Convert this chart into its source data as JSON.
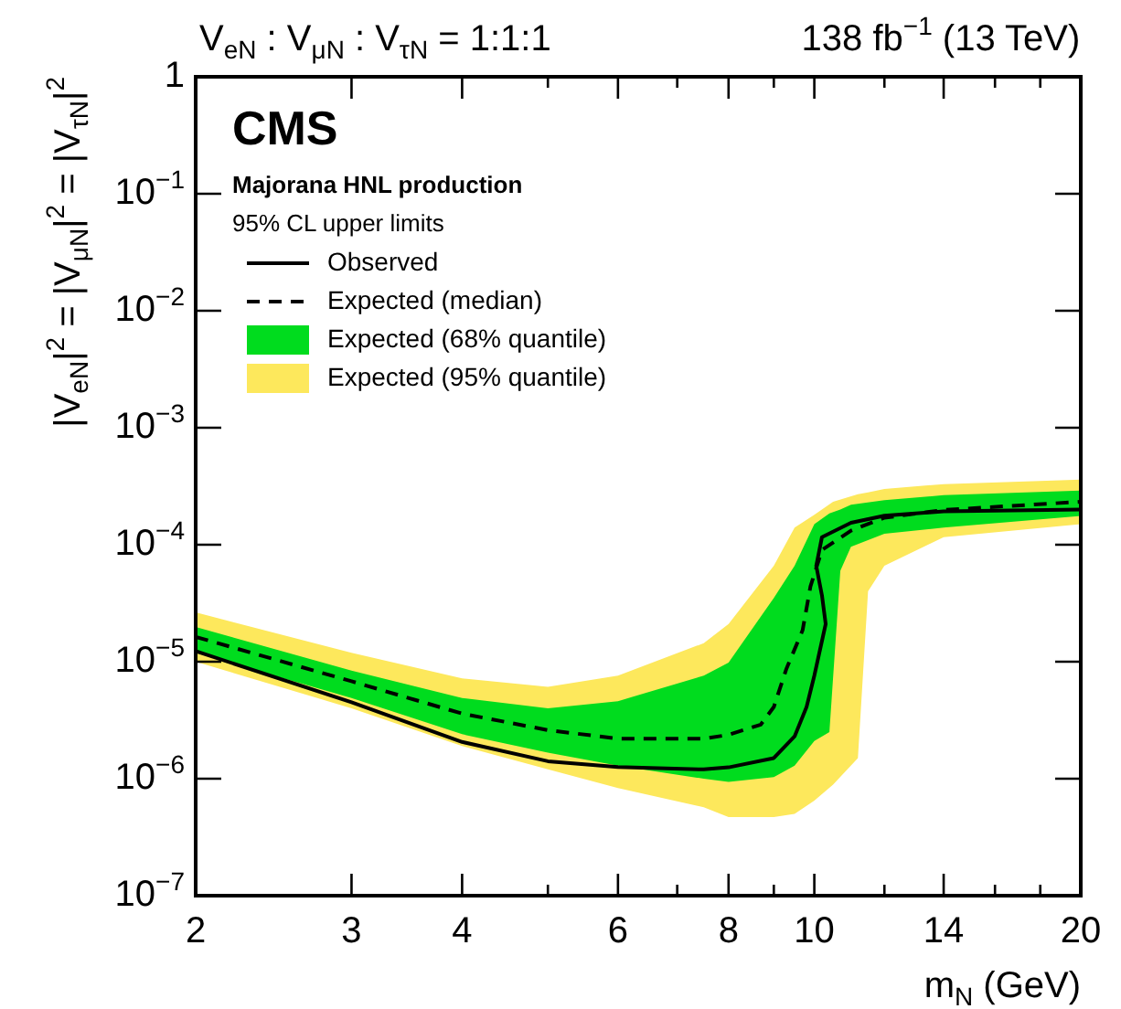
{
  "chart_data": {
    "type": "line",
    "title": "CMS",
    "subtitle": "Majorana HNL production",
    "legend_title": "95% CL upper limits",
    "annotations": [
      "V$_{eN}$ : V$_{μN}$ : V$_{τN}$ = 1:1:1",
      "138 fb$^{−1}$ (13 TeV)"
    ],
    "xlabel": "m$_{N}$ (GeV)",
    "ylabel": "|V$_{eN}$|$^{2}$ = |V$_{μN}$|$^{2}$ = |V$_{τN}$|$^{2}$",
    "log": "xy",
    "legend": "top left",
    "xlim": [
      2,
      20
    ],
    "ylim": [
      1e-07,
      1
    ],
    "xticks": [
      2,
      3,
      4,
      {
        "value": 5,
        "label": null
      },
      6,
      {
        "value": 7,
        "label": null
      },
      8,
      {
        "value": 9,
        "label": null
      },
      10,
      {
        "value": 12,
        "label": null
      },
      14,
      {
        "value": 16,
        "label": null
      },
      {
        "value": 18,
        "label": null
      },
      20
    ],
    "yticks": [
      {
        "value": 1e-07,
        "label": "10$^{−7}$"
      },
      {
        "value": 1e-06,
        "label": "10$^{−6}$"
      },
      {
        "value": 1e-05,
        "label": "10$^{−5}$"
      },
      {
        "value": 0.0001,
        "label": "10$^{−4}$"
      },
      {
        "value": 0.001,
        "label": "10$^{−3}$"
      },
      {
        "value": 0.01,
        "label": "10$^{−2}$"
      },
      {
        "value": 0.1,
        "label": "10$^{−1}$"
      },
      1
    ],
    "series": [
      {
        "name": "Observed",
        "type": "line",
        "color": "#000000",
        "line_style": "solid",
        "x": [
          2,
          3,
          4,
          5,
          6,
          7.5,
          8,
          9,
          9.5,
          9.8,
          10,
          10.3,
          10.2,
          10.05,
          10.2,
          11,
          12,
          14,
          20
        ],
        "values": [
          1.23e-05,
          4.5e-06,
          2.06e-06,
          1.41e-06,
          1.26e-06,
          1.2e-06,
          1.25e-06,
          1.5e-06,
          2.3e-06,
          4.1e-06,
          7.6e-06,
          2.1e-05,
          3.7e-05,
          6.6e-05,
          0.000116,
          0.000154,
          0.000177,
          0.000193,
          0.0002
        ]
      },
      {
        "name": "Expected (median)",
        "type": "line",
        "color": "#000000",
        "line_style": "dashed",
        "x": [
          2,
          3,
          4,
          5,
          6,
          7.5,
          8,
          8.7,
          9,
          9.3,
          9.7,
          9.9,
          10.2,
          11,
          12,
          14,
          20
        ],
        "values": [
          1.63e-05,
          6.8e-06,
          3.6e-06,
          2.6e-06,
          2.2e-06,
          2.2e-06,
          2.37e-06,
          2.9e-06,
          4.1e-06,
          8.7e-06,
          1.86e-05,
          4.4e-05,
          9e-05,
          0.000132,
          0.00017,
          0.000198,
          0.000233
        ]
      },
      {
        "name": "Expected (68% quantile)",
        "type": "area",
        "color": "#00dc1e",
        "x": [
          2,
          3,
          4,
          5,
          6,
          7.5,
          8,
          9,
          9.5,
          10,
          10.4,
          10.7,
          11,
          12,
          14,
          20
        ],
        "values": [
          null,
          null,
          null,
          null,
          null,
          null,
          null,
          null,
          null,
          null,
          null,
          null,
          null,
          null,
          null,
          null
        ],
        "lower": [
          1.19e-05,
          4.9e-06,
          2.4e-06,
          1.67e-06,
          1.29e-06,
          1e-06,
          9.4e-07,
          1.03e-06,
          1.29e-06,
          2.1e-06,
          2.5e-06,
          6e-05,
          9.6e-05,
          0.000124,
          0.00014,
          0.000176
        ],
        "upper": [
          1.98e-05,
          8.4e-06,
          4.9e-06,
          4e-06,
          4.6e-06,
          7.6e-06,
          9.8e-06,
          3.5e-05,
          6.6e-05,
          0.00015,
          0.000185,
          0.0002,
          0.00022,
          0.00024,
          0.000265,
          0.00029
        ]
      },
      {
        "name": "Expected (95% quantile)",
        "type": "area",
        "color": "#fde85c",
        "x": [
          2,
          3,
          4,
          5,
          6,
          7.5,
          8,
          9,
          9.5,
          10,
          10.5,
          11.2,
          11.5,
          12,
          14,
          20
        ],
        "values": [
          null,
          null,
          null,
          null,
          null,
          null,
          null,
          null,
          null,
          null,
          null,
          null,
          null,
          null,
          null,
          null
        ],
        "lower": [
          1e-05,
          4e-06,
          1.9e-06,
          1.2e-06,
          8.3e-07,
          5.7e-07,
          4.7e-07,
          4.7e-07,
          5e-07,
          6.5e-07,
          8.9e-07,
          1.5e-06,
          4e-05,
          6.6e-05,
          0.000116,
          0.00015
        ],
        "upper": [
          2.64e-05,
          1.19e-05,
          7.2e-06,
          6.1e-06,
          7.6e-06,
          1.44e-05,
          2.1e-05,
          6.6e-05,
          0.00014,
          0.00018,
          0.000233,
          0.00027,
          0.00028,
          0.0003,
          0.00033,
          0.00036
        ]
      }
    ]
  }
}
